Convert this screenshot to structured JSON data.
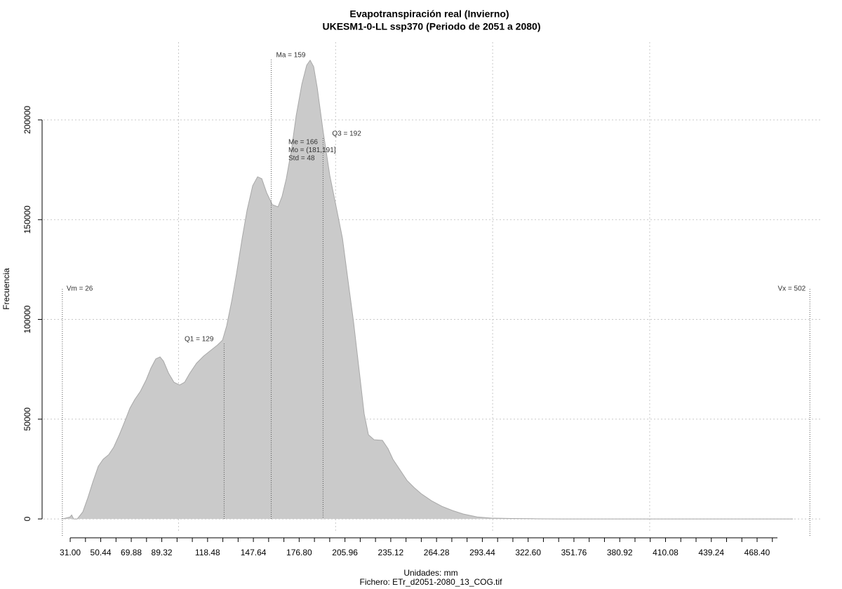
{
  "chart_data": {
    "type": "area",
    "title": "Evapotranspiración real (Invierno)",
    "subtitle": "UKESM1-0-LL ssp370 (Periodo de 2051 a 2080)",
    "x_label": "Unidades: mm",
    "y_label": "Frecuencia",
    "footer": "Fichero: ETr_d2051-2080_13_COG.tif",
    "fill": "#cacaca",
    "line_color": "#a8a8a8",
    "grid": true,
    "xlim": [
      14,
      509.5
    ],
    "ylim": [
      -7000,
      239000
    ],
    "xticks": [
      {
        "value": 31,
        "label": "31.00"
      },
      {
        "value": 50.44,
        "label": "50.44"
      },
      {
        "value": 69.88,
        "label": "69.88"
      },
      {
        "value": 89.32,
        "label": "89.32"
      },
      {
        "value": 118.48,
        "label": "118.48"
      },
      {
        "value": 147.64,
        "label": "147.64"
      },
      {
        "value": 176.8,
        "label": "176.80"
      },
      {
        "value": 205.96,
        "label": "205.96"
      },
      {
        "value": 235.12,
        "label": "235.12"
      },
      {
        "value": 264.28,
        "label": "264.28"
      },
      {
        "value": 293.44,
        "label": "293.44"
      },
      {
        "value": 322.6,
        "label": "322.60"
      },
      {
        "value": 351.76,
        "label": "351.76"
      },
      {
        "value": 380.92,
        "label": "380.92"
      },
      {
        "value": 410.08,
        "label": "410.08"
      },
      {
        "value": 439.24,
        "label": "439.24"
      },
      {
        "value": 468.4,
        "label": "468.40"
      }
    ],
    "xminorticks": [
      40.72,
      60.16,
      79.6,
      99.04,
      108.76,
      128.2,
      137.92,
      157.36,
      167.08,
      186.52,
      196.24,
      215.68,
      225.4,
      244.84,
      254.56,
      274,
      283.72,
      303.16,
      312.88,
      332.32,
      342.04,
      361.48,
      371.2,
      390.64,
      400.36,
      419.8,
      429.52,
      448.96,
      458.68,
      478.12
    ],
    "xgrid": [
      100,
      200,
      300,
      400
    ],
    "yticks": [
      0,
      50000,
      100000,
      150000,
      200000
    ],
    "x": [
      26,
      31,
      31.9,
      33.2,
      35.5,
      39,
      42.2,
      45.3,
      48.9,
      52,
      55.6,
      58.7,
      62.3,
      65.9,
      69,
      72.1,
      75.7,
      79.3,
      82.4,
      85.5,
      88.2,
      90.4,
      93.6,
      97.1,
      100.7,
      103.8,
      107,
      111.4,
      115.9,
      120.4,
      124.8,
      128,
      130.6,
      133.8,
      136.9,
      140.5,
      143.6,
      147.2,
      150.3,
      153,
      156.1,
      159.7,
      163.3,
      165.9,
      168.6,
      171.8,
      174.9,
      178.5,
      181.6,
      183.8,
      186,
      188.3,
      191.9,
      196.3,
      200.8,
      204.4,
      207.9,
      211.5,
      215.1,
      218.2,
      220.9,
      224.5,
      229.8,
      233.4,
      236.5,
      241,
      245.5,
      249.9,
      254.4,
      261.1,
      267.8,
      274.5,
      281.2,
      290.1,
      299.1,
      312.5,
      325.9,
      343.8,
      433.1,
      491.2
    ],
    "values": [
      0,
      1000,
      2000,
      0,
      0,
      3500,
      10500,
      18300,
      26400,
      29900,
      32300,
      35900,
      42200,
      49200,
      55500,
      59800,
      64000,
      69600,
      75600,
      80200,
      81200,
      79100,
      73100,
      68500,
      67100,
      68500,
      72800,
      78000,
      81600,
      84400,
      87200,
      89600,
      96700,
      109000,
      123000,
      140600,
      154700,
      167000,
      171500,
      170500,
      163500,
      157500,
      156400,
      161700,
      170500,
      184600,
      202100,
      217900,
      227400,
      229900,
      226700,
      216200,
      195100,
      172200,
      154700,
      140600,
      119500,
      98400,
      73800,
      52700,
      42200,
      39700,
      39400,
      35200,
      29900,
      24600,
      19300,
      15800,
      12700,
      9100,
      6300,
      4200,
      2500,
      1000,
      400,
      200,
      100,
      0,
      0,
      0
    ],
    "stats": [
      {
        "label": "Vm = 26",
        "value": 26
      },
      {
        "label": "Q1 = 129",
        "value": 129
      },
      {
        "label": "Ma = 159",
        "value": 159
      },
      {
        "label": "Q3 = 192",
        "value": 192
      },
      {
        "label": "Vx = 502",
        "value": 502
      }
    ],
    "annotations": [
      "Me = 166",
      "Mo = (181,191]",
      "Std = 48"
    ]
  }
}
